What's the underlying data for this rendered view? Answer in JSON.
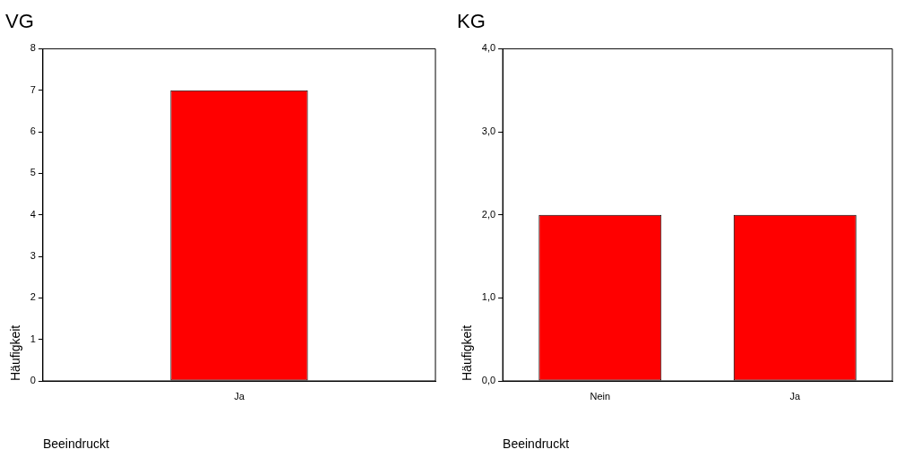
{
  "chart_data": [
    {
      "type": "bar",
      "title": "VG",
      "xlabel": "Beeindruckt",
      "ylabel": "Häufigkeit",
      "categories": [
        "Ja"
      ],
      "values": [
        7
      ],
      "color": "#ff0000",
      "ylim": [
        0,
        8
      ],
      "yticks": [
        0,
        1,
        2,
        3,
        4,
        5,
        6,
        7,
        8
      ]
    },
    {
      "type": "bar",
      "title": "KG",
      "xlabel": "Beeindruckt",
      "ylabel": "Häufigkeit",
      "categories": [
        "Nein",
        "Ja"
      ],
      "values": [
        2,
        2
      ],
      "color": "#ff0000",
      "ylim": [
        0,
        4
      ],
      "yticks": [
        {
          "value": 0,
          "label": "0,0"
        },
        {
          "value": 1,
          "label": "1,0"
        },
        {
          "value": 2,
          "label": "2,0"
        },
        {
          "value": 3,
          "label": "3,0"
        },
        {
          "value": 4,
          "label": "4,0"
        }
      ]
    }
  ]
}
